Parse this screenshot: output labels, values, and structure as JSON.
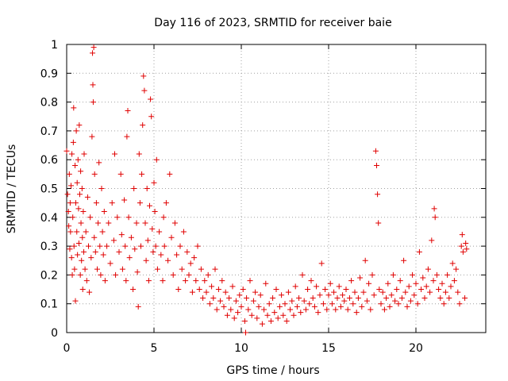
{
  "chart_data": {
    "type": "scatter",
    "title": "Day 116 of 2023, SRMTID for receiver baie",
    "xlabel": "GPS time / hours",
    "ylabel": "SRMTID / TECUs",
    "xlim": [
      0,
      24
    ],
    "ylim": [
      0,
      1
    ],
    "xticks": [
      0,
      5,
      10,
      15,
      20
    ],
    "xtick_labels": [
      "0",
      "5",
      "10",
      "15",
      "20"
    ],
    "yticks": [
      0,
      0.1,
      0.2,
      0.3,
      0.4,
      0.5,
      0.6,
      0.7,
      0.8,
      0.9,
      1
    ],
    "ytick_labels": [
      "0",
      "0.1",
      "0.2",
      "0.3",
      "0.4",
      "0.5",
      "0.6",
      "0.7",
      "0.8",
      "0.9",
      "1"
    ],
    "grid": true,
    "marker": "+",
    "color": "#e00000",
    "series": [
      {
        "name": "SRMTID",
        "points": [
          [
            0.0,
            0.63
          ],
          [
            0.05,
            0.48
          ],
          [
            0.1,
            0.42
          ],
          [
            0.12,
            0.37
          ],
          [
            0.15,
            0.55
          ],
          [
            0.18,
            0.29
          ],
          [
            0.2,
            0.45
          ],
          [
            0.22,
            0.35
          ],
          [
            0.25,
            0.51
          ],
          [
            0.28,
            0.26
          ],
          [
            0.3,
            0.62
          ],
          [
            0.32,
            0.2
          ],
          [
            0.35,
            0.4
          ],
          [
            0.38,
            0.66
          ],
          [
            0.4,
            0.78
          ],
          [
            0.42,
            0.3
          ],
          [
            0.45,
            0.22
          ],
          [
            0.48,
            0.58
          ],
          [
            0.5,
            0.11
          ],
          [
            0.52,
            0.45
          ],
          [
            0.55,
            0.7
          ],
          [
            0.58,
            0.35
          ],
          [
            0.6,
            0.52
          ],
          [
            0.62,
            0.27
          ],
          [
            0.65,
            0.6
          ],
          [
            0.68,
            0.43
          ],
          [
            0.7,
            0.31
          ],
          [
            0.72,
            0.72
          ],
          [
            0.75,
            0.48
          ],
          [
            0.78,
            0.2
          ],
          [
            0.8,
            0.56
          ],
          [
            0.82,
            0.38
          ],
          [
            0.85,
            0.25
          ],
          [
            0.88,
            0.5
          ],
          [
            0.9,
            0.33
          ],
          [
            0.92,
            0.15
          ],
          [
            0.95,
            0.42
          ],
          [
            0.98,
            0.28
          ],
          [
            1.0,
            0.62
          ],
          [
            1.05,
            0.22
          ],
          [
            1.1,
            0.35
          ],
          [
            1.15,
            0.18
          ],
          [
            1.2,
            0.47
          ],
          [
            1.25,
            0.3
          ],
          [
            1.3,
            0.14
          ],
          [
            1.35,
            0.4
          ],
          [
            1.4,
            0.26
          ],
          [
            1.45,
            0.68
          ],
          [
            1.48,
            0.97
          ],
          [
            1.5,
            0.86
          ],
          [
            1.52,
            0.8
          ],
          [
            1.55,
            0.99
          ],
          [
            1.58,
            0.33
          ],
          [
            1.6,
            0.55
          ],
          [
            1.65,
            0.28
          ],
          [
            1.7,
            0.45
          ],
          [
            1.75,
            0.22
          ],
          [
            1.8,
            0.38
          ],
          [
            1.85,
            0.59
          ],
          [
            1.9,
            0.3
          ],
          [
            1.95,
            0.2
          ],
          [
            2.0,
            0.5
          ],
          [
            2.05,
            0.35
          ],
          [
            2.1,
            0.27
          ],
          [
            2.15,
            0.42
          ],
          [
            2.2,
            0.18
          ],
          [
            2.3,
            0.3
          ],
          [
            2.4,
            0.38
          ],
          [
            2.5,
            0.24
          ],
          [
            2.6,
            0.45
          ],
          [
            2.7,
            0.32
          ],
          [
            2.75,
            0.62
          ],
          [
            2.8,
            0.2
          ],
          [
            2.9,
            0.4
          ],
          [
            3.0,
            0.28
          ],
          [
            3.1,
            0.55
          ],
          [
            3.15,
            0.34
          ],
          [
            3.2,
            0.22
          ],
          [
            3.3,
            0.46
          ],
          [
            3.35,
            0.3
          ],
          [
            3.4,
            0.18
          ],
          [
            3.45,
            0.68
          ],
          [
            3.5,
            0.77
          ],
          [
            3.55,
            0.4
          ],
          [
            3.6,
            0.26
          ],
          [
            3.7,
            0.33
          ],
          [
            3.8,
            0.15
          ],
          [
            3.85,
            0.5
          ],
          [
            3.9,
            0.29
          ],
          [
            4.0,
            0.38
          ],
          [
            4.05,
            0.21
          ],
          [
            4.1,
            0.09
          ],
          [
            4.15,
            0.62
          ],
          [
            4.2,
            0.45
          ],
          [
            4.25,
            0.3
          ],
          [
            4.3,
            0.55
          ],
          [
            4.35,
            0.72
          ],
          [
            4.4,
            0.89
          ],
          [
            4.45,
            0.84
          ],
          [
            4.5,
            0.38
          ],
          [
            4.55,
            0.25
          ],
          [
            4.6,
            0.5
          ],
          [
            4.65,
            0.32
          ],
          [
            4.7,
            0.18
          ],
          [
            4.75,
            0.44
          ],
          [
            4.8,
            0.81
          ],
          [
            4.85,
            0.75
          ],
          [
            4.9,
            0.36
          ],
          [
            4.95,
            0.28
          ],
          [
            5.0,
            0.52
          ],
          [
            5.05,
            0.42
          ],
          [
            5.1,
            0.3
          ],
          [
            5.15,
            0.6
          ],
          [
            5.2,
            0.22
          ],
          [
            5.3,
            0.35
          ],
          [
            5.4,
            0.27
          ],
          [
            5.5,
            0.18
          ],
          [
            5.55,
            0.4
          ],
          [
            5.6,
            0.3
          ],
          [
            5.7,
            0.45
          ],
          [
            5.8,
            0.25
          ],
          [
            5.9,
            0.55
          ],
          [
            6.0,
            0.33
          ],
          [
            6.1,
            0.2
          ],
          [
            6.2,
            0.38
          ],
          [
            6.3,
            0.27
          ],
          [
            6.4,
            0.15
          ],
          [
            6.5,
            0.3
          ],
          [
            6.6,
            0.22
          ],
          [
            6.7,
            0.35
          ],
          [
            6.8,
            0.18
          ],
          [
            6.9,
            0.28
          ],
          [
            7.0,
            0.2
          ],
          [
            7.1,
            0.24
          ],
          [
            7.2,
            0.14
          ],
          [
            7.3,
            0.26
          ],
          [
            7.4,
            0.18
          ],
          [
            7.5,
            0.3
          ],
          [
            7.6,
            0.15
          ],
          [
            7.7,
            0.22
          ],
          [
            7.8,
            0.12
          ],
          [
            7.9,
            0.18
          ],
          [
            8.0,
            0.14
          ],
          [
            8.1,
            0.2
          ],
          [
            8.2,
            0.1
          ],
          [
            8.3,
            0.16
          ],
          [
            8.4,
            0.12
          ],
          [
            8.5,
            0.22
          ],
          [
            8.6,
            0.08
          ],
          [
            8.7,
            0.15
          ],
          [
            8.8,
            0.11
          ],
          [
            8.9,
            0.18
          ],
          [
            9.0,
            0.09
          ],
          [
            9.1,
            0.14
          ],
          [
            9.2,
            0.06
          ],
          [
            9.3,
            0.12
          ],
          [
            9.4,
            0.08
          ],
          [
            9.5,
            0.16
          ],
          [
            9.6,
            0.05
          ],
          [
            9.7,
            0.11
          ],
          [
            9.8,
            0.07
          ],
          [
            9.9,
            0.13
          ],
          [
            10.0,
            0.09
          ],
          [
            10.1,
            0.15
          ],
          [
            10.2,
            0.04
          ],
          [
            10.25,
            0.0
          ],
          [
            10.3,
            0.12
          ],
          [
            10.4,
            0.08
          ],
          [
            10.5,
            0.18
          ],
          [
            10.6,
            0.06
          ],
          [
            10.7,
            0.11
          ],
          [
            10.8,
            0.14
          ],
          [
            10.9,
            0.05
          ],
          [
            11.0,
            0.09
          ],
          [
            11.1,
            0.13
          ],
          [
            11.2,
            0.03
          ],
          [
            11.3,
            0.08
          ],
          [
            11.4,
            0.17
          ],
          [
            11.5,
            0.06
          ],
          [
            11.6,
            0.1
          ],
          [
            11.7,
            0.04
          ],
          [
            11.8,
            0.12
          ],
          [
            11.9,
            0.07
          ],
          [
            12.0,
            0.15
          ],
          [
            12.1,
            0.05
          ],
          [
            12.2,
            0.09
          ],
          [
            12.3,
            0.13
          ],
          [
            12.4,
            0.06
          ],
          [
            12.5,
            0.1
          ],
          [
            12.6,
            0.04
          ],
          [
            12.7,
            0.14
          ],
          [
            12.8,
            0.08
          ],
          [
            12.9,
            0.11
          ],
          [
            13.0,
            0.06
          ],
          [
            13.1,
            0.16
          ],
          [
            13.2,
            0.09
          ],
          [
            13.3,
            0.12
          ],
          [
            13.4,
            0.07
          ],
          [
            13.5,
            0.2
          ],
          [
            13.6,
            0.11
          ],
          [
            13.7,
            0.08
          ],
          [
            13.8,
            0.15
          ],
          [
            13.9,
            0.1
          ],
          [
            14.0,
            0.18
          ],
          [
            14.1,
            0.12
          ],
          [
            14.2,
            0.09
          ],
          [
            14.3,
            0.16
          ],
          [
            14.4,
            0.07
          ],
          [
            14.5,
            0.13
          ],
          [
            14.6,
            0.24
          ],
          [
            14.7,
            0.1
          ],
          [
            14.8,
            0.15
          ],
          [
            14.9,
            0.08
          ],
          [
            15.0,
            0.13
          ],
          [
            15.1,
            0.17
          ],
          [
            15.2,
            0.1
          ],
          [
            15.3,
            0.14
          ],
          [
            15.4,
            0.08
          ],
          [
            15.5,
            0.12
          ],
          [
            15.6,
            0.16
          ],
          [
            15.7,
            0.09
          ],
          [
            15.8,
            0.13
          ],
          [
            15.9,
            0.11
          ],
          [
            16.0,
            0.15
          ],
          [
            16.1,
            0.08
          ],
          [
            16.2,
            0.12
          ],
          [
            16.3,
            0.18
          ],
          [
            16.4,
            0.1
          ],
          [
            16.5,
            0.14
          ],
          [
            16.6,
            0.07
          ],
          [
            16.7,
            0.12
          ],
          [
            16.8,
            0.19
          ],
          [
            16.9,
            0.09
          ],
          [
            17.0,
            0.14
          ],
          [
            17.1,
            0.25
          ],
          [
            17.2,
            0.11
          ],
          [
            17.3,
            0.17
          ],
          [
            17.4,
            0.08
          ],
          [
            17.5,
            0.2
          ],
          [
            17.6,
            0.13
          ],
          [
            17.7,
            0.63
          ],
          [
            17.75,
            0.58
          ],
          [
            17.8,
            0.48
          ],
          [
            17.85,
            0.38
          ],
          [
            17.9,
            0.15
          ],
          [
            18.0,
            0.1
          ],
          [
            18.1,
            0.14
          ],
          [
            18.2,
            0.08
          ],
          [
            18.3,
            0.12
          ],
          [
            18.4,
            0.17
          ],
          [
            18.5,
            0.09
          ],
          [
            18.6,
            0.13
          ],
          [
            18.7,
            0.2
          ],
          [
            18.8,
            0.11
          ],
          [
            18.9,
            0.15
          ],
          [
            19.0,
            0.1
          ],
          [
            19.1,
            0.18
          ],
          [
            19.2,
            0.12
          ],
          [
            19.3,
            0.25
          ],
          [
            19.4,
            0.14
          ],
          [
            19.5,
            0.09
          ],
          [
            19.6,
            0.16
          ],
          [
            19.7,
            0.11
          ],
          [
            19.8,
            0.2
          ],
          [
            19.9,
            0.13
          ],
          [
            20.0,
            0.17
          ],
          [
            20.1,
            0.1
          ],
          [
            20.2,
            0.28
          ],
          [
            20.3,
            0.15
          ],
          [
            20.4,
            0.19
          ],
          [
            20.5,
            0.12
          ],
          [
            20.6,
            0.16
          ],
          [
            20.7,
            0.22
          ],
          [
            20.8,
            0.14
          ],
          [
            20.9,
            0.32
          ],
          [
            21.0,
            0.18
          ],
          [
            21.05,
            0.43
          ],
          [
            21.1,
            0.4
          ],
          [
            21.2,
            0.2
          ],
          [
            21.3,
            0.15
          ],
          [
            21.4,
            0.12
          ],
          [
            21.5,
            0.17
          ],
          [
            21.6,
            0.1
          ],
          [
            21.7,
            0.14
          ],
          [
            21.8,
            0.2
          ],
          [
            21.9,
            0.12
          ],
          [
            22.0,
            0.16
          ],
          [
            22.1,
            0.24
          ],
          [
            22.2,
            0.18
          ],
          [
            22.3,
            0.22
          ],
          [
            22.4,
            0.14
          ],
          [
            22.5,
            0.1
          ],
          [
            22.6,
            0.3
          ],
          [
            22.65,
            0.34
          ],
          [
            22.7,
            0.28
          ],
          [
            22.8,
            0.12
          ],
          [
            22.85,
            0.31
          ],
          [
            22.9,
            0.29
          ]
        ]
      }
    ]
  }
}
